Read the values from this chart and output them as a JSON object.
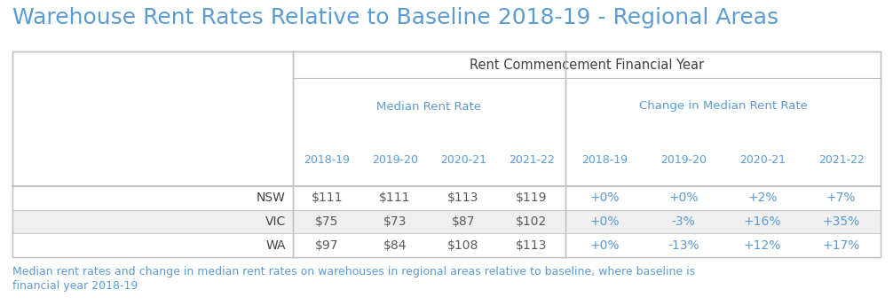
{
  "title": "Warehouse Rent Rates Relative to Baseline 2018-19 - Regional Areas",
  "title_color": "#5b9bd5",
  "title_fontsize": 18,
  "title_fontweight": "normal",
  "header1": "Rent Commencement Financial Year",
  "header2a": "Median Rent Rate",
  "header2b": "Change in Median Rent Rate",
  "subheaders_rent": [
    "2018-19",
    "2019-20",
    "2020-21",
    "2021-22"
  ],
  "subheaders_change": [
    "2018-19",
    "2019-20",
    "2020-21",
    "2021-22"
  ],
  "subheader_color": "#5b9bd5",
  "rows": [
    {
      "label": "NSW",
      "rent": [
        "$111",
        "$111",
        "$113",
        "$119"
      ],
      "change": [
        "+0%",
        "+0%",
        "+2%",
        "+7%"
      ],
      "bg": "#ffffff"
    },
    {
      "label": "VIC",
      "rent": [
        "$75",
        "$73",
        "$87",
        "$102"
      ],
      "change": [
        "+0%",
        "-3%",
        "+16%",
        "+35%"
      ],
      "bg": "#efefef"
    },
    {
      "label": "WA",
      "rent": [
        "$97",
        "$84",
        "$108",
        "$113"
      ],
      "change": [
        "+0%",
        "-13%",
        "+12%",
        "+17%"
      ],
      "bg": "#ffffff"
    }
  ],
  "footer_line1": "Median rent rates and change in median rent rates on warehouses in regional areas relative to baseline, where baseline is",
  "footer_line2": "financial year 2018-19",
  "footer_color": "#5b9bd5",
  "footer_fontsize": 9,
  "label_color": "#404040",
  "rent_color": "#595959",
  "change_color": "#5b9bd5",
  "header1_color": "#404040",
  "header2_color": "#5b9bd5",
  "subheader_text_color": "#5b9bd5",
  "border_color": "#c0c0c0",
  "background": "#ffffff",
  "fig_width": 10.06,
  "fig_height": 3.44,
  "dpi": 100
}
